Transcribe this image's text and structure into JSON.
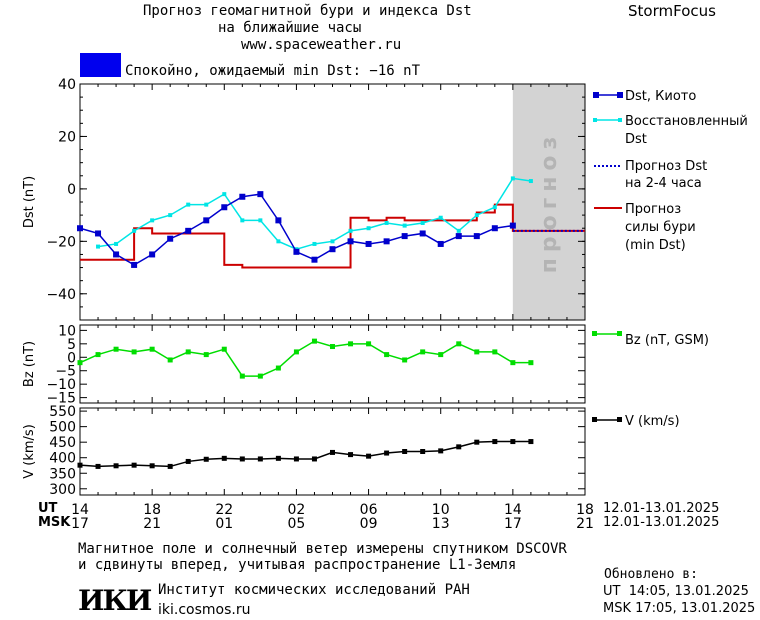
{
  "header": {
    "title_line1": "Прогноз геомагнитной бури и индекса Dst",
    "title_line2": "на ближайшие часы",
    "site": "www.spaceweather.ru",
    "brand": "StormFocus",
    "status_text": "Спокойно, ожидаемый min Dst: −16 nT",
    "status_color": "#0000ee"
  },
  "legend": {
    "dst_kyoto": "Dst, Киото",
    "restored_1": "Восстановленный",
    "restored_2": "Dst",
    "forecast_1": "Прогноз Dst",
    "forecast_2": "на 2-4 часа",
    "storm_1": "Прогноз",
    "storm_2": "силы бури",
    "storm_3": "(min Dst)",
    "bz": "Bz (nT, GSM)",
    "v": "V (km/s)"
  },
  "forecast_band_label": "прогноз",
  "time_axis": {
    "ut_label": "UT",
    "msk_label": "MSK",
    "ut_ticks": [
      "14",
      "18",
      "22",
      "02",
      "06",
      "10",
      "14",
      "18"
    ],
    "msk_ticks": [
      "17",
      "21",
      "01",
      "05",
      "09",
      "13",
      "17",
      "21"
    ],
    "date_range_ut": "12.01-13.01.2025",
    "date_range_msk": "12.01-13.01.2025"
  },
  "footer": {
    "note_line1": "Магнитное поле и солнечный ветер измерены спутником DSCOVR",
    "note_line2": "и сдвинуты вперед, учитывая распространение L1-Земля",
    "logo_text": "ИКИ",
    "institute": "Институт космических исследований РАН",
    "institute_url": "iki.cosmos.ru",
    "updated_label": "Обновлено в:",
    "updated_ut": "UT  14:05, 13.01.2025",
    "updated_msk": "MSK 17:05, 13.01.2025"
  },
  "colors": {
    "dst": "#0000cc",
    "restored": "#00e5e5",
    "forecast": "#0000cc",
    "storm": "#cc0000",
    "bz": "#00dd00",
    "v": "#000000",
    "forecast_band": "#d3d3d3"
  },
  "chart_data": [
    {
      "type": "line",
      "panel": "Dst",
      "ylabel": "Dst (nT)",
      "ylim": [
        -50,
        40
      ],
      "yticks": [
        40,
        20,
        0,
        -20,
        -40
      ],
      "x_unit": "hours since 14 UT, 12.01.2025",
      "xlim": [
        0,
        28
      ],
      "forecast_start": 24,
      "series": [
        {
          "name": "Dst, Киото",
          "style": "line-square",
          "x": [
            0,
            1,
            2,
            3,
            4,
            5,
            6,
            7,
            8,
            9,
            10,
            11,
            12,
            13,
            14,
            15,
            16,
            17,
            18,
            19,
            20,
            21,
            22,
            23,
            24
          ],
          "y": [
            -15,
            -17,
            -25,
            -29,
            -25,
            -19,
            -16,
            -12,
            -7,
            -3,
            -2,
            -12,
            -24,
            -27,
            -23,
            -20,
            -21,
            -20,
            -18,
            -17,
            -21,
            -18,
            -18,
            -15,
            -14
          ]
        },
        {
          "name": "Восстановленный Dst",
          "style": "line-dot",
          "x": [
            1,
            2,
            3,
            4,
            5,
            6,
            7,
            8,
            9,
            10,
            11,
            12,
            13,
            14,
            15,
            16,
            17,
            18,
            19,
            20,
            21,
            22,
            23,
            24,
            25
          ],
          "y": [
            -22,
            -21,
            -16,
            -12,
            -10,
            -6,
            -6,
            -2,
            -12,
            -12,
            -20,
            -23,
            -21,
            -20,
            -16,
            -15,
            -13,
            -14,
            -13,
            -11,
            -16,
            -10,
            -7,
            4,
            3
          ]
        },
        {
          "name": "Прогноз Dst на 2-4 часа",
          "style": "dotted",
          "x": [
            24,
            25,
            26,
            27,
            28
          ],
          "y": [
            -16,
            -16,
            -16,
            -16,
            -16
          ]
        },
        {
          "name": "Прогноз силы бури (min Dst)",
          "style": "step",
          "x": [
            0,
            1,
            2,
            3,
            4,
            5,
            6,
            7,
            8,
            9,
            10,
            11,
            12,
            13,
            14,
            15,
            16,
            17,
            18,
            19,
            20,
            21,
            22,
            23,
            24,
            28
          ],
          "y": [
            -27,
            -27,
            -27,
            -15,
            -17,
            -17,
            -17,
            -17,
            -29,
            -30,
            -30,
            -30,
            -30,
            -30,
            -30,
            -11,
            -12,
            -11,
            -12,
            -12,
            -12,
            -12,
            -9,
            -6,
            -16,
            -16
          ]
        }
      ]
    },
    {
      "type": "line",
      "panel": "Bz",
      "ylabel": "Bz (nT)",
      "ylim": [
        -17,
        12
      ],
      "yticks": [
        10,
        5,
        0,
        -5,
        -10,
        -15
      ],
      "series": [
        {
          "name": "Bz (nT, GSM)",
          "x": [
            0,
            1,
            2,
            3,
            4,
            5,
            6,
            7,
            8,
            9,
            10,
            11,
            12,
            13,
            14,
            15,
            16,
            17,
            18,
            19,
            20,
            21,
            22,
            23,
            24,
            25
          ],
          "y": [
            -2,
            1,
            3,
            2,
            3,
            -1,
            2,
            1,
            3,
            -7,
            -7,
            -4,
            2,
            6,
            4,
            5,
            5,
            1,
            -1,
            2,
            1,
            5,
            2,
            2,
            -2,
            -2
          ]
        }
      ]
    },
    {
      "type": "line",
      "panel": "V",
      "ylabel": "V (km/s)",
      "ylim": [
        280,
        560
      ],
      "yticks": [
        550,
        500,
        450,
        400,
        350,
        300
      ],
      "series": [
        {
          "name": "V (km/s)",
          "x": [
            0,
            1,
            2,
            3,
            4,
            5,
            6,
            7,
            8,
            9,
            10,
            11,
            12,
            13,
            14,
            15,
            16,
            17,
            18,
            19,
            20,
            21,
            22,
            23,
            24,
            25
          ],
          "y": [
            376,
            372,
            374,
            376,
            374,
            372,
            388,
            395,
            398,
            396,
            396,
            398,
            396,
            396,
            417,
            410,
            405,
            415,
            420,
            420,
            422,
            435,
            450,
            452,
            452,
            452
          ]
        }
      ]
    }
  ]
}
